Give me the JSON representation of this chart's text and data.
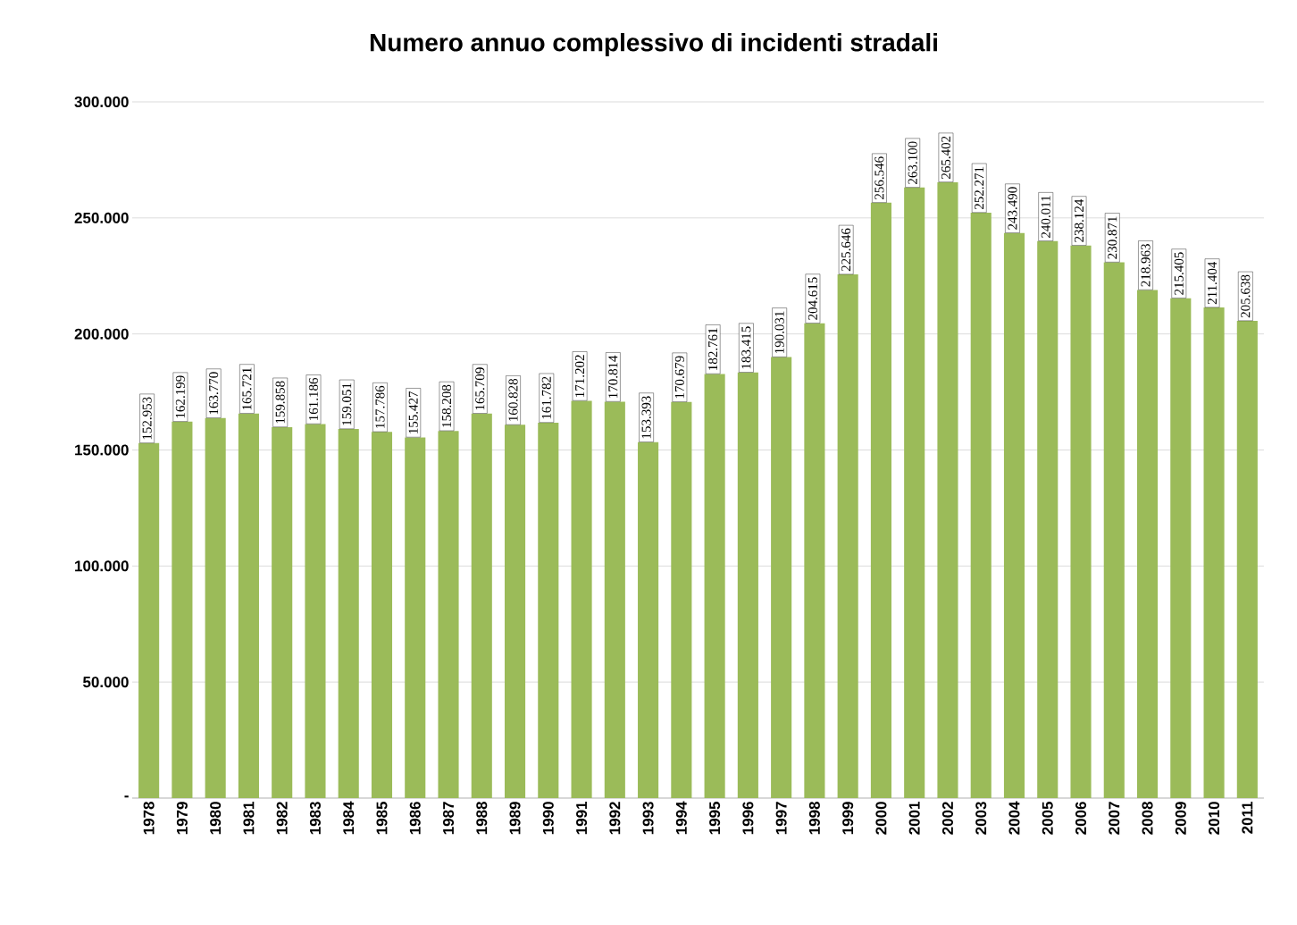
{
  "chart_data": {
    "type": "bar",
    "title": "Numero annuo complessivo di incidenti stradali",
    "categories": [
      "1978",
      "1979",
      "1980",
      "1981",
      "1982",
      "1983",
      "1984",
      "1985",
      "1986",
      "1987",
      "1988",
      "1989",
      "1990",
      "1991",
      "1992",
      "1993",
      "1994",
      "1995",
      "1996",
      "1997",
      "1998",
      "1999",
      "2000",
      "2001",
      "2002",
      "2003",
      "2004",
      "2005",
      "2006",
      "2007",
      "2008",
      "2009",
      "2010",
      "2011"
    ],
    "values": [
      152953,
      162199,
      163770,
      165721,
      159858,
      161186,
      159051,
      157786,
      155427,
      158208,
      165709,
      160828,
      161782,
      171202,
      170814,
      153393,
      170679,
      182761,
      183415,
      190031,
      204615,
      225646,
      256546,
      263100,
      265402,
      252271,
      243490,
      240011,
      238124,
      230871,
      218963,
      215405,
      211404,
      205638
    ],
    "value_labels": [
      "152.953",
      "162.199",
      "163.770",
      "165.721",
      "159.858",
      "161.186",
      "159.051",
      "157.786",
      "155.427",
      "158.208",
      "165.709",
      "160.828",
      "161.782",
      "171.202",
      "170.814",
      "153.393",
      "170.679",
      "182.761",
      "183.415",
      "190.031",
      "204.615",
      "225.646",
      "256.546",
      "263.100",
      "265.402",
      "252.271",
      "243.490",
      "240.011",
      "238.124",
      "230.871",
      "218.963",
      "215.405",
      "211.404",
      "205.638"
    ],
    "color": "#9bbb59",
    "ylim": [
      0,
      300000
    ],
    "yticks": [
      {
        "value": 0,
        "label": "-"
      },
      {
        "value": 50000,
        "label": "50.000"
      },
      {
        "value": 100000,
        "label": "100.000"
      },
      {
        "value": 150000,
        "label": "150.000"
      },
      {
        "value": 200000,
        "label": "200.000"
      },
      {
        "value": 250000,
        "label": "250.000"
      },
      {
        "value": 300000,
        "label": "300.000"
      }
    ],
    "grid": "y"
  }
}
